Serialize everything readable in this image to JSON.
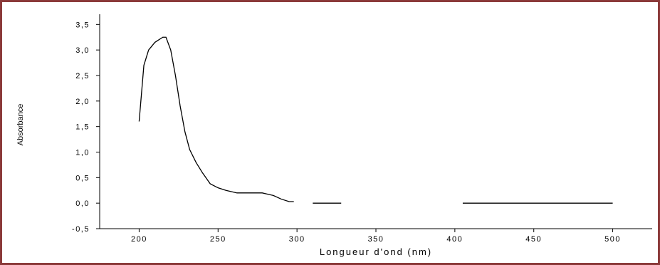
{
  "chart_data": {
    "type": "line",
    "x_label": "Longueur d'ond (nm)",
    "y_label": "Absorbance",
    "xlim": [
      175,
      525
    ],
    "ylim": [
      -0.5,
      3.7
    ],
    "xticks": [
      200,
      250,
      300,
      350,
      400,
      450,
      500
    ],
    "yticks": [
      {
        "value": -0.5,
        "label": "-0,5"
      },
      {
        "value": 0,
        "label": "0,0"
      },
      {
        "value": 0.5,
        "label": "0,5"
      },
      {
        "value": 1,
        "label": "1,0"
      },
      {
        "value": 1.5,
        "label": "1,5"
      },
      {
        "value": 2,
        "label": "2,0"
      },
      {
        "value": 2.5,
        "label": "2,5"
      },
      {
        "value": 3,
        "label": "3,0"
      },
      {
        "value": 3.5,
        "label": "3,5"
      }
    ],
    "series": [
      {
        "color": "#000000",
        "x": [
          200,
          203,
          206,
          210,
          215,
          217,
          220,
          223,
          226,
          229,
          232,
          236,
          240,
          245,
          250,
          255,
          262,
          270,
          278,
          285,
          290,
          295,
          298,
          null,
          310,
          328,
          null,
          405,
          500
        ],
        "values": [
          1.6,
          2.7,
          3.0,
          3.15,
          3.25,
          3.25,
          3.0,
          2.5,
          1.9,
          1.4,
          1.05,
          0.8,
          0.6,
          0.38,
          0.3,
          0.25,
          0.2,
          0.2,
          0.2,
          0.15,
          0.08,
          0.03,
          0.03,
          null,
          0,
          0,
          null,
          0,
          0
        ]
      }
    ]
  }
}
